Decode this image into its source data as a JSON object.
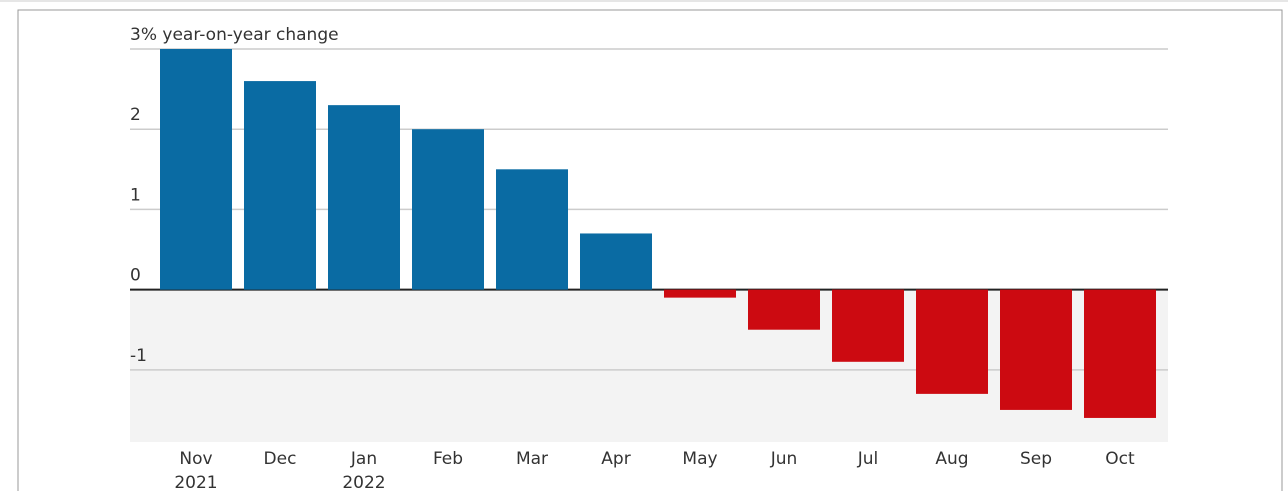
{
  "chart_data": {
    "type": "bar",
    "y_label": "year-on-year change",
    "categories": [
      "Nov 2021",
      "Dec",
      "Jan 2022",
      "Feb",
      "Mar",
      "Apr",
      "May",
      "Jun",
      "Jul",
      "Aug",
      "Sep",
      "Oct"
    ],
    "values": [
      3.0,
      2.6,
      2.3,
      2.0,
      1.5,
      0.7,
      -0.1,
      -0.5,
      -0.9,
      -1.3,
      -1.5,
      -1.6
    ],
    "color_positive": "#0a6ba3",
    "color_negative": "#cc0a11",
    "ylim": [
      -1.9,
      3
    ],
    "yticks": [
      {
        "value": 3,
        "label": "3%"
      },
      2,
      1,
      0,
      -1
    ],
    "grid": true
  }
}
